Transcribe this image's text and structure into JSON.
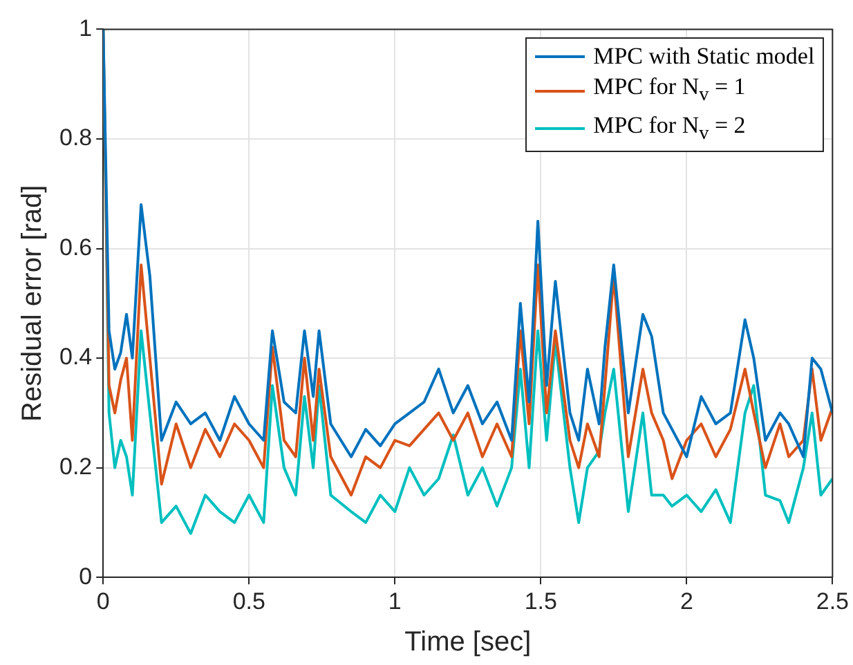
{
  "chart_data": {
    "type": "line",
    "xlabel": "Time [sec]",
    "ylabel": "Residual error [rad]",
    "xlim": [
      0,
      2.5
    ],
    "xticks": [
      0,
      0.5,
      1,
      1.5,
      2,
      2.5
    ],
    "ylim": [
      0,
      1
    ],
    "yticks": [
      0,
      0.2,
      0.4,
      0.6,
      0.8,
      1
    ],
    "grid": true,
    "legend": "top right",
    "marker": "none",
    "line_style": "solid",
    "x": [
      0,
      0.02,
      0.04,
      0.06,
      0.08,
      0.1,
      0.13,
      0.16,
      0.2,
      0.25,
      0.3,
      0.35,
      0.4,
      0.45,
      0.5,
      0.55,
      0.58,
      0.62,
      0.66,
      0.69,
      0.72,
      0.74,
      0.78,
      0.85,
      0.9,
      0.95,
      1.0,
      1.05,
      1.1,
      1.15,
      1.2,
      1.25,
      1.3,
      1.35,
      1.4,
      1.43,
      1.46,
      1.49,
      1.52,
      1.55,
      1.6,
      1.63,
      1.66,
      1.7,
      1.72,
      1.75,
      1.8,
      1.85,
      1.88,
      1.92,
      1.95,
      2.0,
      2.05,
      2.1,
      2.15,
      2.2,
      2.23,
      2.27,
      2.32,
      2.35,
      2.4,
      2.43,
      2.46,
      2.5
    ],
    "series": [
      {
        "name": "MPC with Static model",
        "color": "#0072bd",
        "values": [
          1,
          0.45,
          0.38,
          0.41,
          0.48,
          0.4,
          0.68,
          0.55,
          0.25,
          0.32,
          0.28,
          0.3,
          0.25,
          0.33,
          0.28,
          0.25,
          0.45,
          0.32,
          0.3,
          0.45,
          0.33,
          0.45,
          0.28,
          0.22,
          0.27,
          0.24,
          0.28,
          0.3,
          0.32,
          0.38,
          0.3,
          0.35,
          0.28,
          0.32,
          0.25,
          0.5,
          0.32,
          0.65,
          0.35,
          0.54,
          0.3,
          0.25,
          0.38,
          0.28,
          0.42,
          0.57,
          0.3,
          0.48,
          0.44,
          0.3,
          0.27,
          0.22,
          0.33,
          0.28,
          0.3,
          0.47,
          0.4,
          0.25,
          0.3,
          0.28,
          0.22,
          0.4,
          0.38,
          0.3
        ]
      },
      {
        "name": "MPC for N$_{v}$ = 1",
        "color": "#d95319",
        "values": [
          1,
          0.35,
          0.3,
          0.36,
          0.4,
          0.25,
          0.57,
          0.4,
          0.17,
          0.28,
          0.2,
          0.27,
          0.22,
          0.28,
          0.25,
          0.2,
          0.42,
          0.25,
          0.22,
          0.4,
          0.25,
          0.38,
          0.22,
          0.15,
          0.22,
          0.2,
          0.25,
          0.24,
          0.27,
          0.3,
          0.25,
          0.3,
          0.22,
          0.28,
          0.22,
          0.45,
          0.28,
          0.57,
          0.3,
          0.45,
          0.25,
          0.2,
          0.28,
          0.22,
          0.35,
          0.55,
          0.22,
          0.38,
          0.3,
          0.25,
          0.18,
          0.25,
          0.28,
          0.22,
          0.27,
          0.38,
          0.3,
          0.2,
          0.28,
          0.22,
          0.25,
          0.38,
          0.25,
          0.31
        ]
      },
      {
        "name": "MPC for N$_{v}$ = 2",
        "color": "#00bfbf",
        "values": [
          1,
          0.3,
          0.2,
          0.25,
          0.22,
          0.15,
          0.45,
          0.3,
          0.1,
          0.13,
          0.08,
          0.15,
          0.12,
          0.1,
          0.15,
          0.1,
          0.35,
          0.2,
          0.15,
          0.33,
          0.2,
          0.35,
          0.15,
          0.12,
          0.1,
          0.15,
          0.12,
          0.2,
          0.15,
          0.18,
          0.26,
          0.15,
          0.2,
          0.13,
          0.2,
          0.38,
          0.2,
          0.45,
          0.25,
          0.43,
          0.2,
          0.1,
          0.2,
          0.23,
          0.3,
          0.38,
          0.12,
          0.3,
          0.15,
          0.15,
          0.13,
          0.15,
          0.12,
          0.16,
          0.1,
          0.3,
          0.35,
          0.15,
          0.14,
          0.1,
          0.2,
          0.3,
          0.15,
          0.18
        ]
      }
    ]
  }
}
